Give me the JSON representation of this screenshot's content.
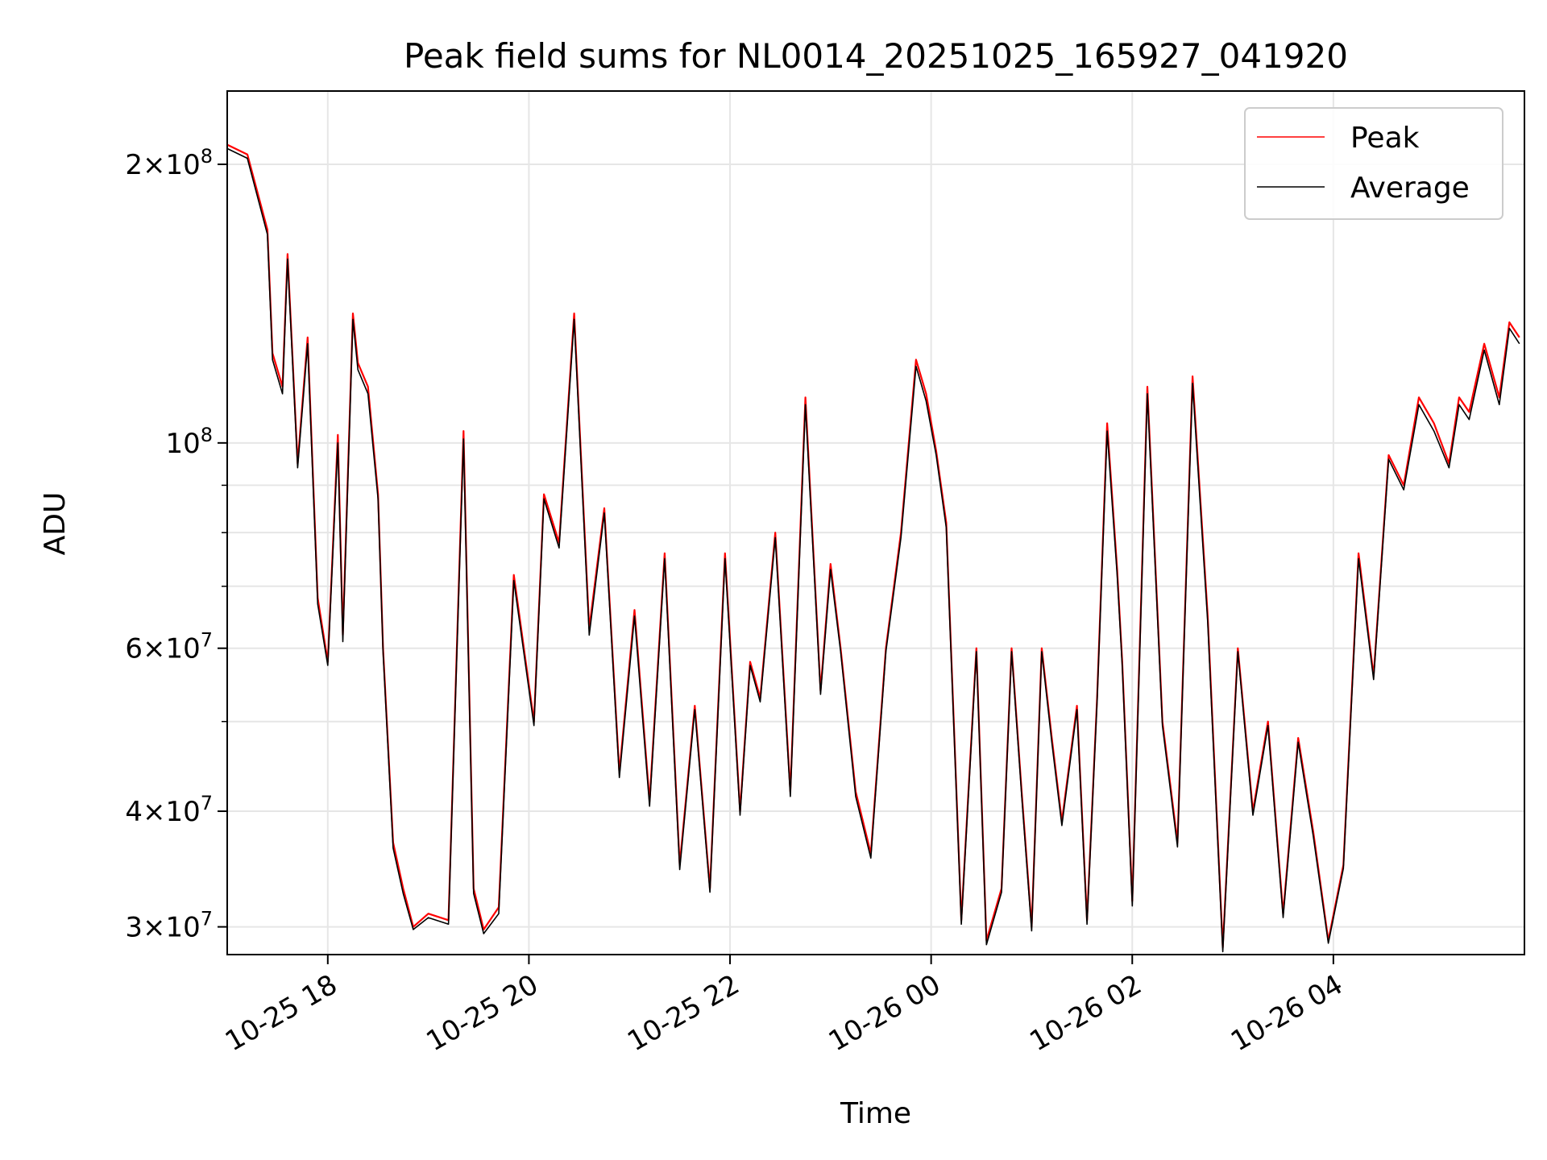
{
  "chart_data": {
    "type": "line",
    "title": "Peak field sums for NL0014_20251025_165927_041920",
    "xlabel": "Time",
    "ylabel": "ADU",
    "yscale": "log",
    "grid": true,
    "legend_position": "top-right",
    "xlim_hours": [
      -1.0,
      11.9
    ],
    "ylim": [
      28000000,
      240000000
    ],
    "x_ticks": [
      {
        "hours": 0,
        "label": "10-25 18"
      },
      {
        "hours": 2,
        "label": "10-25 20"
      },
      {
        "hours": 4,
        "label": "10-25 22"
      },
      {
        "hours": 6,
        "label": "10-26 00"
      },
      {
        "hours": 8,
        "label": "10-26 02"
      },
      {
        "hours": 10,
        "label": "10-26 04"
      }
    ],
    "y_major_ticks": [
      {
        "value": 30000000,
        "mantissa": "3",
        "exponent": "7"
      },
      {
        "value": 40000000,
        "mantissa": "4",
        "exponent": "7"
      },
      {
        "value": 60000000,
        "mantissa": "6",
        "exponent": "7"
      },
      {
        "value": 100000000,
        "mantissa": "",
        "exponent": "8"
      },
      {
        "value": 200000000,
        "mantissa": "2",
        "exponent": "8"
      }
    ],
    "y_minor_ticks": [
      50000000,
      70000000,
      80000000,
      90000000
    ],
    "x_hours": [
      -1.0,
      -0.8,
      -0.6,
      -0.55,
      -0.45,
      -0.4,
      -0.3,
      -0.2,
      -0.1,
      0.0,
      0.1,
      0.15,
      0.25,
      0.3,
      0.4,
      0.5,
      0.55,
      0.65,
      0.75,
      0.85,
      1.0,
      1.2,
      1.35,
      1.45,
      1.55,
      1.7,
      1.85,
      2.05,
      2.15,
      2.3,
      2.45,
      2.6,
      2.75,
      2.9,
      3.05,
      3.2,
      3.35,
      3.5,
      3.65,
      3.8,
      3.95,
      4.1,
      4.2,
      4.3,
      4.45,
      4.6,
      4.75,
      4.9,
      5.0,
      5.1,
      5.25,
      5.4,
      5.55,
      5.7,
      5.85,
      5.95,
      6.05,
      6.15,
      6.3,
      6.45,
      6.55,
      6.7,
      6.8,
      6.9,
      7.0,
      7.1,
      7.2,
      7.3,
      7.45,
      7.55,
      7.65,
      7.75,
      7.85,
      7.9,
      8.0,
      8.15,
      8.3,
      8.45,
      8.6,
      8.75,
      8.9,
      9.05,
      9.2,
      9.35,
      9.5,
      9.65,
      9.8,
      9.95,
      10.1,
      10.25,
      10.4,
      10.55,
      10.7,
      10.85,
      11.0,
      11.15,
      11.25,
      11.35,
      11.5,
      11.65,
      11.75,
      11.85
    ],
    "series": [
      {
        "name": "Peak",
        "color": "#ff0000",
        "values": [
          210000000,
          205000000,
          170000000,
          125000000,
          115000000,
          160000000,
          95000000,
          130000000,
          68000000,
          58000000,
          102000000,
          62000000,
          138000000,
          122000000,
          115000000,
          88000000,
          60000000,
          37000000,
          33000000,
          30000000,
          31000000,
          30500000,
          103000000,
          33000000,
          29800000,
          31500000,
          72000000,
          50000000,
          88000000,
          78000000,
          138000000,
          63000000,
          85000000,
          44000000,
          66000000,
          41000000,
          76000000,
          35000000,
          52000000,
          33000000,
          76000000,
          40000000,
          58000000,
          53000000,
          80000000,
          42000000,
          112000000,
          54000000,
          74000000,
          60000000,
          42000000,
          36000000,
          60000000,
          80000000,
          123000000,
          113000000,
          98000000,
          82000000,
          30500000,
          60000000,
          29000000,
          33000000,
          60000000,
          42000000,
          30000000,
          60000000,
          48000000,
          39000000,
          52000000,
          30500000,
          53000000,
          105000000,
          73000000,
          58000000,
          32000000,
          115000000,
          50000000,
          37000000,
          118000000,
          65000000,
          28500000,
          60000000,
          40000000,
          50000000,
          31000000,
          48000000,
          38000000,
          29000000,
          35000000,
          76000000,
          56000000,
          97000000,
          90000000,
          112000000,
          105000000,
          95000000,
          112000000,
          108000000,
          128000000,
          112000000,
          135000000,
          130000000
        ]
      },
      {
        "name": "Average",
        "color": "#000000",
        "values": [
          208000000,
          203000000,
          168000000,
          123000000,
          113000000,
          158000000,
          94000000,
          128000000,
          67000000,
          57500000,
          100000000,
          61000000,
          136000000,
          120000000,
          113000000,
          87000000,
          59500000,
          36500000,
          32600000,
          29800000,
          30700000,
          30200000,
          101000000,
          32600000,
          29500000,
          31000000,
          71000000,
          49500000,
          87000000,
          77000000,
          136000000,
          62000000,
          84000000,
          43500000,
          65000000,
          40500000,
          75000000,
          34600000,
          51500000,
          32700000,
          75000000,
          39600000,
          57500000,
          52500000,
          79000000,
          41500000,
          110000000,
          53500000,
          73000000,
          59500000,
          41500000,
          35600000,
          59500000,
          79000000,
          121000000,
          111000000,
          97000000,
          81000000,
          30200000,
          59500000,
          28700000,
          32700000,
          59500000,
          41600000,
          29700000,
          59500000,
          47500000,
          38600000,
          51500000,
          30200000,
          52500000,
          103000000,
          72000000,
          57500000,
          31600000,
          113000000,
          49500000,
          36600000,
          116000000,
          64000000,
          28200000,
          59500000,
          39600000,
          49500000,
          30700000,
          47500000,
          37600000,
          28800000,
          34700000,
          75000000,
          55500000,
          96000000,
          89000000,
          110000000,
          103000000,
          94000000,
          110000000,
          106000000,
          126000000,
          110000000,
          133000000,
          128000000
        ]
      }
    ]
  }
}
